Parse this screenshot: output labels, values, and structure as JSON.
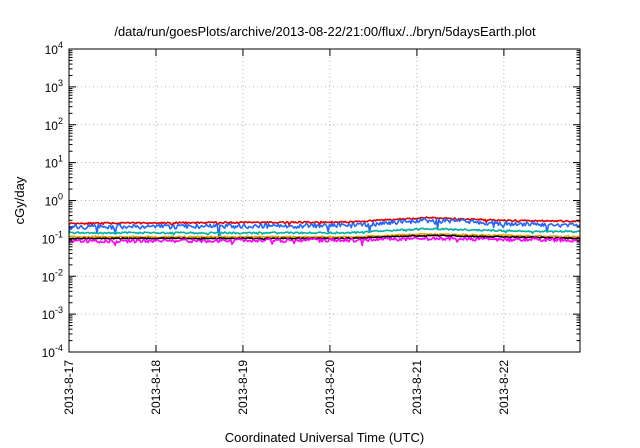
{
  "chart_data": {
    "type": "line",
    "title": "/data/run/goesPlots/archive/2013-08-22/21:00/flux/../bryn/5daysEarth.plot",
    "xlabel": "Coordinated Universal Time (UTC)",
    "ylabel": "cGy/day",
    "y_scale": "log",
    "ylim_exponents": [
      -4,
      4
    ],
    "y_tick_exponents": [
      -4,
      -3,
      -2,
      -1,
      0,
      1,
      2,
      3,
      4
    ],
    "y_tick_base": "10",
    "x_range_days": [
      "2013-08-17",
      "2013-08-22 21:00"
    ],
    "x_tick_labels": [
      "2013-8-17",
      "2013-8-18",
      "2013-8-19",
      "2013-8-20",
      "2013-8-21",
      "2013-8-22"
    ],
    "grid": true,
    "series": [
      {
        "color": "#e00000",
        "base": 0.27,
        "trend": [
          [
            0,
            0.25
          ],
          [
            0.55,
            0.27
          ],
          [
            0.7,
            0.35
          ],
          [
            0.85,
            0.3
          ],
          [
            1,
            0.28
          ]
        ],
        "noise": 0.1,
        "seed": 11
      },
      {
        "color": "#2266ff",
        "base": 0.21,
        "trend": [
          [
            0,
            0.2
          ],
          [
            0.55,
            0.22
          ],
          [
            0.7,
            0.3
          ],
          [
            0.85,
            0.25
          ],
          [
            1,
            0.22
          ]
        ],
        "noise": 0.28,
        "seed": 23
      },
      {
        "color": "#00b0a0",
        "base": 0.14,
        "trend": [
          [
            0,
            0.14
          ],
          [
            0.55,
            0.14
          ],
          [
            0.7,
            0.18
          ],
          [
            0.85,
            0.16
          ],
          [
            1,
            0.15
          ]
        ],
        "noise": 0.1,
        "seed": 37
      },
      {
        "color": "#e8a000",
        "base": 0.11,
        "trend": [
          [
            0,
            0.11
          ],
          [
            0.55,
            0.11
          ],
          [
            0.7,
            0.13
          ],
          [
            0.85,
            0.12
          ],
          [
            1,
            0.11
          ]
        ],
        "noise": 0.08,
        "seed": 41
      },
      {
        "color": "#000000",
        "base": 0.1,
        "trend": [
          [
            0,
            0.1
          ],
          [
            0.55,
            0.1
          ],
          [
            0.7,
            0.12
          ],
          [
            0.85,
            0.11
          ],
          [
            1,
            0.1
          ]
        ],
        "noise": 0.07,
        "seed": 53
      },
      {
        "color": "#ff00ff",
        "base": 0.085,
        "trend": [
          [
            0,
            0.085
          ],
          [
            0.55,
            0.09
          ],
          [
            0.7,
            0.1
          ],
          [
            0.85,
            0.095
          ],
          [
            1,
            0.09
          ]
        ],
        "noise": 0.22,
        "seed": 67
      }
    ]
  }
}
